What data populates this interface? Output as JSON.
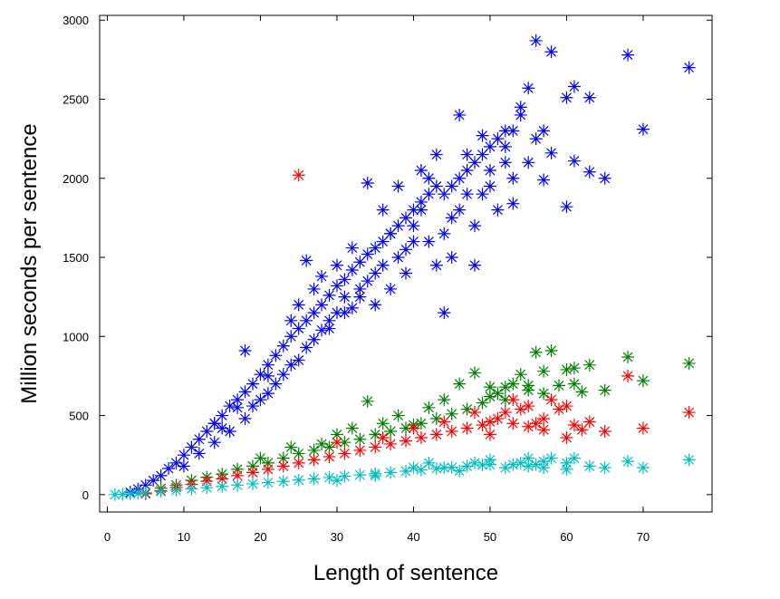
{
  "chart_data": {
    "type": "scatter",
    "title": "",
    "xlabel": "Length of sentence",
    "ylabel": "Million seconds per sentence",
    "xlim": [
      -1,
      79
    ],
    "ylim": [
      -110,
      3030
    ],
    "xticks": [
      0,
      10,
      20,
      30,
      40,
      50,
      60,
      70
    ],
    "yticks": [
      0,
      500,
      1000,
      1500,
      2000,
      2500,
      3000
    ],
    "grid": false,
    "legend": "none",
    "marker": "asterisk",
    "series": [
      {
        "color": "#0000ff",
        "points": [
          [
            3,
            15
          ],
          [
            4,
            35
          ],
          [
            5,
            60
          ],
          [
            6,
            90
          ],
          [
            7,
            120
          ],
          [
            8,
            165
          ],
          [
            9,
            200
          ],
          [
            10,
            250
          ],
          [
            11,
            300
          ],
          [
            12,
            350
          ],
          [
            13,
            400
          ],
          [
            14,
            450
          ],
          [
            15,
            500
          ],
          [
            16,
            560
          ],
          [
            17,
            600
          ],
          [
            18,
            650
          ],
          [
            19,
            700
          ],
          [
            20,
            760
          ],
          [
            21,
            820
          ],
          [
            22,
            880
          ],
          [
            23,
            940
          ],
          [
            24,
            1000
          ],
          [
            25,
            1050
          ],
          [
            26,
            1100
          ],
          [
            27,
            1150
          ],
          [
            28,
            1200
          ],
          [
            29,
            1260
          ],
          [
            30,
            1320
          ],
          [
            31,
            1360
          ],
          [
            32,
            1420
          ],
          [
            33,
            1470
          ],
          [
            34,
            1520
          ],
          [
            35,
            1560
          ],
          [
            36,
            1600
          ],
          [
            37,
            1650
          ],
          [
            38,
            1700
          ],
          [
            39,
            1750
          ],
          [
            40,
            1800
          ],
          [
            41,
            1850
          ],
          [
            42,
            1900
          ],
          [
            43,
            1950
          ],
          [
            44,
            1900
          ],
          [
            45,
            1950
          ],
          [
            46,
            2000
          ],
          [
            47,
            2050
          ],
          [
            48,
            2100
          ],
          [
            49,
            2150
          ],
          [
            50,
            2200
          ],
          [
            51,
            2250
          ],
          [
            52,
            2200
          ],
          [
            53,
            2300
          ],
          [
            54,
            2450
          ],
          [
            55,
            2570
          ],
          [
            56,
            2870
          ],
          [
            57,
            2300
          ],
          [
            58,
            2800
          ],
          [
            60,
            1820
          ],
          [
            60,
            2510
          ],
          [
            61,
            2580
          ],
          [
            61,
            2110
          ],
          [
            63,
            2510
          ],
          [
            63,
            2040
          ],
          [
            65,
            2000
          ],
          [
            68,
            2780
          ],
          [
            70,
            2310
          ],
          [
            76,
            2700
          ],
          [
            10,
            180
          ],
          [
            12,
            260
          ],
          [
            14,
            330
          ],
          [
            15,
            420
          ],
          [
            16,
            400
          ],
          [
            18,
            480
          ],
          [
            18,
            910
          ],
          [
            19,
            560
          ],
          [
            20,
            600
          ],
          [
            21,
            640
          ],
          [
            22,
            700
          ],
          [
            23,
            760
          ],
          [
            24,
            820
          ],
          [
            25,
            850
          ],
          [
            25,
            1200
          ],
          [
            26,
            930
          ],
          [
            26,
            1480
          ],
          [
            27,
            980
          ],
          [
            28,
            1040
          ],
          [
            28,
            1380
          ],
          [
            29,
            1100
          ],
          [
            30,
            1150
          ],
          [
            30,
            1450
          ],
          [
            31,
            1250
          ],
          [
            32,
            1180
          ],
          [
            32,
            1560
          ],
          [
            33,
            1300
          ],
          [
            34,
            1350
          ],
          [
            34,
            1970
          ],
          [
            35,
            1400
          ],
          [
            36,
            1450
          ],
          [
            36,
            1800
          ],
          [
            37,
            1300
          ],
          [
            38,
            1500
          ],
          [
            38,
            1950
          ],
          [
            39,
            1400
          ],
          [
            40,
            1600
          ],
          [
            40,
            1700
          ],
          [
            41,
            2050
          ],
          [
            42,
            1600
          ],
          [
            42,
            2000
          ],
          [
            43,
            2150
          ],
          [
            44,
            1650
          ],
          [
            44,
            1150
          ],
          [
            45,
            1750
          ],
          [
            45,
            1500
          ],
          [
            46,
            2400
          ],
          [
            46,
            1800
          ],
          [
            47,
            2150
          ],
          [
            48,
            1700
          ],
          [
            49,
            2270
          ],
          [
            49,
            1900
          ],
          [
            50,
            1950
          ],
          [
            50,
            2050
          ],
          [
            51,
            1800
          ],
          [
            52,
            2100
          ],
          [
            53,
            1840
          ],
          [
            54,
            2400
          ],
          [
            55,
            2100
          ],
          [
            56,
            2250
          ],
          [
            57,
            1990
          ],
          [
            58,
            2160
          ],
          [
            14,
            450
          ],
          [
            17,
            550
          ],
          [
            21,
            750
          ],
          [
            24,
            1100
          ],
          [
            27,
            1300
          ],
          [
            29,
            1050
          ],
          [
            31,
            1150
          ],
          [
            33,
            1250
          ],
          [
            35,
            1200
          ],
          [
            37,
            1650
          ],
          [
            39,
            1550
          ],
          [
            41,
            1800
          ],
          [
            43,
            1450
          ],
          [
            47,
            1900
          ],
          [
            48,
            1450
          ],
          [
            52,
            2300
          ],
          [
            53,
            2000
          ]
        ]
      },
      {
        "color": "#008000",
        "points": [
          [
            5,
            10
          ],
          [
            7,
            40
          ],
          [
            9,
            60
          ],
          [
            11,
            90
          ],
          [
            13,
            110
          ],
          [
            15,
            130
          ],
          [
            17,
            160
          ],
          [
            19,
            180
          ],
          [
            21,
            200
          ],
          [
            23,
            230
          ],
          [
            25,
            260
          ],
          [
            27,
            280
          ],
          [
            29,
            300
          ],
          [
            31,
            330
          ],
          [
            33,
            350
          ],
          [
            35,
            380
          ],
          [
            37,
            400
          ],
          [
            39,
            420
          ],
          [
            41,
            450
          ],
          [
            43,
            480
          ],
          [
            45,
            510
          ],
          [
            47,
            540
          ],
          [
            49,
            580
          ],
          [
            50,
            620
          ],
          [
            51,
            640
          ],
          [
            52,
            600
          ],
          [
            53,
            700
          ],
          [
            54,
            760
          ],
          [
            55,
            660
          ],
          [
            56,
            900
          ],
          [
            57,
            780
          ],
          [
            58,
            910
          ],
          [
            60,
            790
          ],
          [
            61,
            700
          ],
          [
            62,
            650
          ],
          [
            63,
            820
          ],
          [
            65,
            660
          ],
          [
            68,
            870
          ],
          [
            70,
            720
          ],
          [
            76,
            830
          ],
          [
            20,
            230
          ],
          [
            24,
            300
          ],
          [
            28,
            320
          ],
          [
            30,
            380
          ],
          [
            32,
            420
          ],
          [
            34,
            590
          ],
          [
            36,
            450
          ],
          [
            38,
            500
          ],
          [
            40,
            440
          ],
          [
            42,
            550
          ],
          [
            44,
            600
          ],
          [
            46,
            700
          ],
          [
            48,
            770
          ],
          [
            50,
            680
          ],
          [
            52,
            680
          ],
          [
            55,
            690
          ],
          [
            57,
            640
          ],
          [
            59,
            690
          ],
          [
            61,
            800
          ]
        ]
      },
      {
        "color": "#ff0000",
        "points": [
          [
            5,
            5
          ],
          [
            7,
            25
          ],
          [
            9,
            45
          ],
          [
            11,
            65
          ],
          [
            13,
            85
          ],
          [
            15,
            100
          ],
          [
            17,
            120
          ],
          [
            19,
            140
          ],
          [
            21,
            160
          ],
          [
            23,
            180
          ],
          [
            25,
            200
          ],
          [
            25,
            2020
          ],
          [
            27,
            220
          ],
          [
            29,
            240
          ],
          [
            31,
            260
          ],
          [
            33,
            280
          ],
          [
            35,
            300
          ],
          [
            37,
            320
          ],
          [
            39,
            340
          ],
          [
            41,
            360
          ],
          [
            43,
            380
          ],
          [
            45,
            400
          ],
          [
            47,
            420
          ],
          [
            49,
            440
          ],
          [
            50,
            460
          ],
          [
            51,
            480
          ],
          [
            52,
            520
          ],
          [
            53,
            450
          ],
          [
            54,
            540
          ],
          [
            55,
            430
          ],
          [
            56,
            450
          ],
          [
            57,
            480
          ],
          [
            58,
            600
          ],
          [
            60,
            560
          ],
          [
            60,
            360
          ],
          [
            61,
            440
          ],
          [
            62,
            410
          ],
          [
            63,
            460
          ],
          [
            65,
            400
          ],
          [
            68,
            750
          ],
          [
            70,
            420
          ],
          [
            76,
            520
          ],
          [
            30,
            330
          ],
          [
            36,
            360
          ],
          [
            40,
            420
          ],
          [
            44,
            460
          ],
          [
            48,
            520
          ],
          [
            50,
            380
          ],
          [
            53,
            600
          ],
          [
            55,
            560
          ],
          [
            57,
            410
          ],
          [
            59,
            540
          ]
        ]
      },
      {
        "color": "#00bfbf",
        "points": [
          [
            1,
            0
          ],
          [
            2,
            2
          ],
          [
            3,
            5
          ],
          [
            4,
            8
          ],
          [
            5,
            12
          ],
          [
            7,
            20
          ],
          [
            9,
            28
          ],
          [
            11,
            36
          ],
          [
            13,
            44
          ],
          [
            15,
            52
          ],
          [
            17,
            60
          ],
          [
            19,
            68
          ],
          [
            21,
            76
          ],
          [
            23,
            84
          ],
          [
            25,
            92
          ],
          [
            27,
            100
          ],
          [
            29,
            108
          ],
          [
            31,
            116
          ],
          [
            33,
            124
          ],
          [
            35,
            132
          ],
          [
            37,
            140
          ],
          [
            39,
            148
          ],
          [
            41,
            156
          ],
          [
            43,
            164
          ],
          [
            45,
            172
          ],
          [
            47,
            180
          ],
          [
            49,
            188
          ],
          [
            50,
            190
          ],
          [
            52,
            170
          ],
          [
            54,
            200
          ],
          [
            55,
            180
          ],
          [
            56,
            190
          ],
          [
            57,
            210
          ],
          [
            58,
            230
          ],
          [
            60,
            200
          ],
          [
            61,
            230
          ],
          [
            63,
            180
          ],
          [
            65,
            170
          ],
          [
            68,
            210
          ],
          [
            70,
            170
          ],
          [
            76,
            220
          ],
          [
            30,
            90
          ],
          [
            35,
            120
          ],
          [
            40,
            170
          ],
          [
            42,
            200
          ],
          [
            44,
            170
          ],
          [
            46,
            150
          ],
          [
            48,
            200
          ],
          [
            50,
            220
          ],
          [
            53,
            190
          ],
          [
            55,
            230
          ],
          [
            57,
            170
          ],
          [
            60,
            160
          ]
        ]
      }
    ]
  }
}
